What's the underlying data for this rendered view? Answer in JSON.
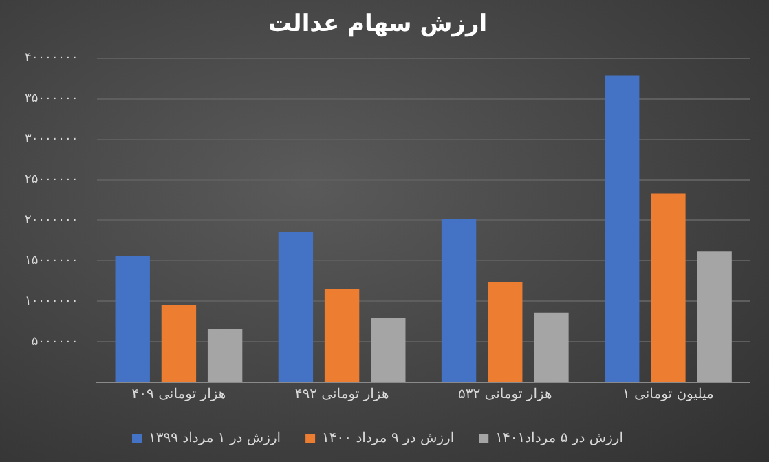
{
  "chart_data": {
    "type": "bar",
    "title": "ارزش سهام عدالت",
    "categories": [
      "۴۰۹ هزار تومانی",
      "۴۹۲ هزار تومانی",
      "۵۳۲ هزار تومانی",
      "۱ میلیون تومانی"
    ],
    "series": [
      {
        "name": "ارزش در ۱ مرداد ۱۳۹۹",
        "color": "#4472c4",
        "values": [
          15600000,
          18600000,
          20200000,
          37900000
        ]
      },
      {
        "name": "ارزش در ۹ مرداد ۱۴۰۰",
        "color": "#ed7d31",
        "values": [
          9500000,
          11500000,
          12400000,
          23300000
        ]
      },
      {
        "name": "ارزش در ۵ مرداد۱۴۰۱",
        "color": "#a5a5a5",
        "values": [
          6600000,
          7900000,
          8600000,
          16200000
        ]
      }
    ],
    "ylim": [
      0,
      40000000
    ],
    "yticks": [
      {
        "value": 0,
        "label": null
      },
      {
        "value": 5000000,
        "label": "۵۰۰۰۰۰۰"
      },
      {
        "value": 10000000,
        "label": "۱۰۰۰۰۰۰۰"
      },
      {
        "value": 15000000,
        "label": "۱۵۰۰۰۰۰۰"
      },
      {
        "value": 20000000,
        "label": "۲۰۰۰۰۰۰۰"
      },
      {
        "value": 25000000,
        "label": "۲۵۰۰۰۰۰۰"
      },
      {
        "value": 30000000,
        "label": "۳۰۰۰۰۰۰۰"
      },
      {
        "value": 35000000,
        "label": "۳۵۰۰۰۰۰۰"
      },
      {
        "value": 40000000,
        "label": "۴۰۰۰۰۰۰۰"
      }
    ],
    "grid": "y",
    "legend": "bottom"
  }
}
